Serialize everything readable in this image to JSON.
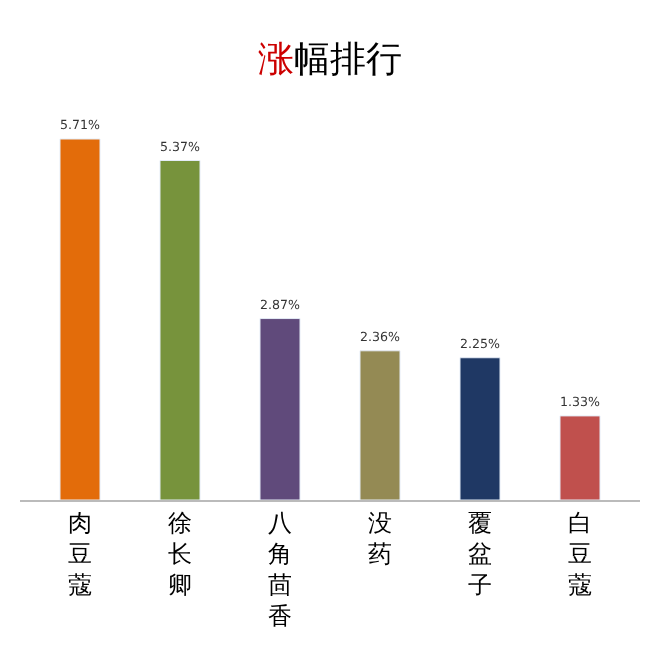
{
  "chart_data": {
    "type": "bar",
    "title": "涨幅排行",
    "categories": [
      "肉豆蔻",
      "徐长卿",
      "八角茴香",
      "没药",
      "覆盆子",
      "白豆蔻"
    ],
    "values": [
      5.71,
      5.37,
      2.87,
      2.36,
      2.25,
      1.33
    ],
    "colors": [
      "#e36c0a",
      "#77933c",
      "#604a7b",
      "#948a54",
      "#1f3864",
      "#c0504d"
    ],
    "value_labels": [
      "5.71%",
      "5.37%",
      "2.87%",
      "2.36%",
      "2.25%",
      "1.33%"
    ]
  }
}
